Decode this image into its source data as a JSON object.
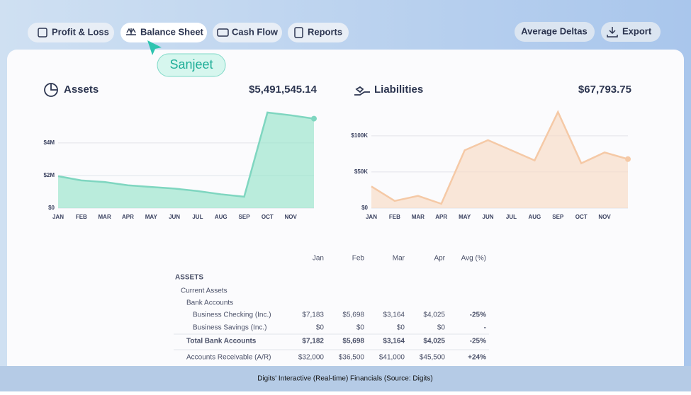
{
  "nav": {
    "tabs": [
      "Profit & Loss",
      "Balance Sheet",
      "Cash Flow",
      "Reports"
    ],
    "actions": [
      "Average Deltas",
      "Export"
    ]
  },
  "cursor_label": "Sanjeet",
  "chart_data": [
    {
      "type": "area",
      "title": "Assets",
      "total": "$5,491,545.14",
      "color": "#8fe3c6",
      "line_color": "#7fd6c0",
      "categories": [
        "JAN",
        "FEB",
        "MAR",
        "APR",
        "MAY",
        "JUN",
        "JUL",
        "AUG",
        "SEP",
        "OCT",
        "NOV",
        null
      ],
      "values": [
        1960000,
        1700000,
        1600000,
        1400000,
        1300000,
        1200000,
        1050000,
        850000,
        700000,
        5870000,
        5700000,
        5491545.14
      ],
      "ylim": [
        0,
        6300000
      ],
      "yticks": [
        {
          "value": 0,
          "label": "$0"
        },
        {
          "value": 2000000,
          "label": "$2M"
        },
        {
          "value": 4000000,
          "label": "$4M"
        }
      ],
      "grid": true
    },
    {
      "type": "area",
      "title": "Liabilities",
      "total": "$67,793.75",
      "color": "#f9d9bf",
      "line_color": "#f5c9a6",
      "categories": [
        "JAN",
        "FEB",
        "MAR",
        "APR",
        "MAY",
        "JUN",
        "JUL",
        "AUG",
        "SEP",
        "OCT",
        "NOV",
        null
      ],
      "values": [
        30000,
        10000,
        17000,
        6000,
        80000,
        94000,
        80000,
        66000,
        133000,
        62000,
        77000,
        67793.75
      ],
      "ylim": [
        0,
        140000
      ],
      "yticks": [
        {
          "value": 0,
          "label": "$0"
        },
        {
          "value": 50000,
          "label": "$50K"
        },
        {
          "value": 100000,
          "label": "$100K"
        }
      ],
      "grid": true
    }
  ],
  "table": {
    "columns": [
      "Jan",
      "Feb",
      "Mar",
      "Apr",
      "Avg (%)"
    ],
    "rows": [
      {
        "label": "ASSETS"
      },
      {
        "label": "Current Assets"
      },
      {
        "label": "Bank Accounts"
      },
      {
        "label": "Business Checking (Inc.)",
        "cells": [
          "$7,183",
          "$5,698",
          "$3,164",
          "$4,025",
          "-25%"
        ]
      },
      {
        "label": "Business Savings (Inc.)",
        "cells": [
          "$0",
          "$0",
          "$0",
          "$0",
          "-"
        ]
      },
      {
        "label": "Total Bank Accounts",
        "cells": [
          "$7,182",
          "$5,698",
          "$3,164",
          "$4,025",
          "-25%"
        ]
      },
      {
        "label": "Accounts Receivable (A/R)",
        "cells": [
          "$32,000",
          "$36,500",
          "$41,000",
          "$45,500",
          "+24%"
        ]
      }
    ]
  },
  "caption": "Digits' Interactive (Real-time) Financials (Source: Digits)"
}
